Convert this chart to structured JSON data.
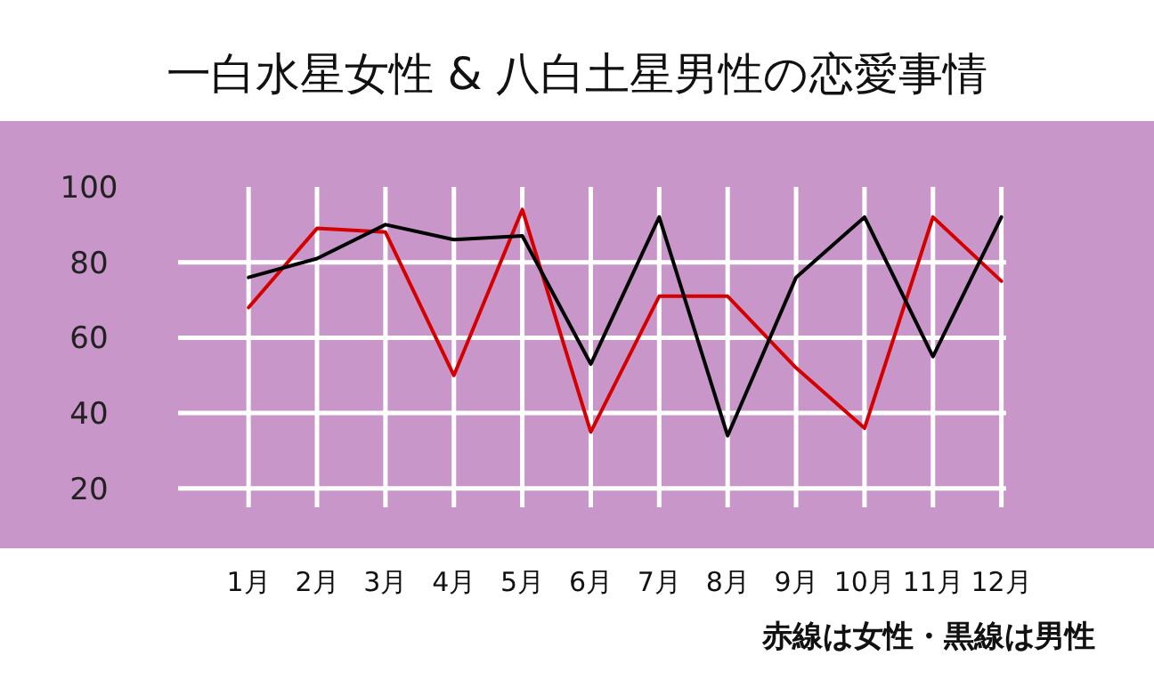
{
  "chart_data": {
    "type": "line",
    "title": "一白水星女性 & 八白土星男性の恋愛事情",
    "categories": [
      "1月",
      "2月",
      "3月",
      "4月",
      "5月",
      "6月",
      "7月",
      "8月",
      "9月",
      "10月",
      "11月",
      "12月"
    ],
    "series": [
      {
        "color": "#d40000",
        "values": [
          68,
          89,
          88,
          50,
          94,
          35,
          71,
          71,
          52,
          36,
          92,
          75
        ]
      },
      {
        "color": "#000000",
        "values": [
          76,
          81,
          90,
          86,
          87,
          53,
          92,
          34,
          76,
          92,
          55,
          92
        ]
      }
    ],
    "ylim": [
      15,
      100
    ],
    "yticks": [
      20,
      40,
      60,
      80,
      100
    ],
    "grid": true,
    "marker": "none",
    "line_style": "solid",
    "annotations": [
      "赤線は女性・黒線は男性"
    ]
  }
}
